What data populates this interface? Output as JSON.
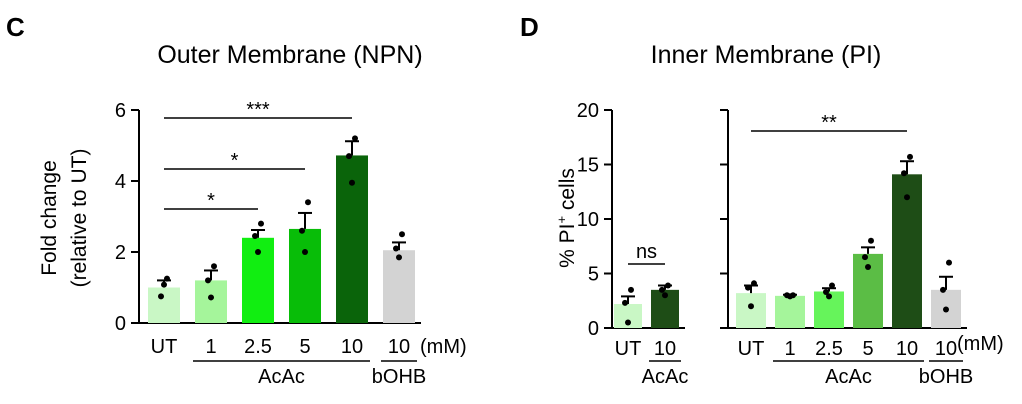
{
  "panels": {
    "C": {
      "letter": "C"
    },
    "D": {
      "letter": "D"
    }
  },
  "chart_data": [
    {
      "id": "C",
      "type": "bar",
      "title": "Outer Membrane (NPN)",
      "ylabel_line1": "Fold change",
      "ylabel_line2": "(relative to UT)",
      "ylim": [
        0,
        6
      ],
      "yticks": [
        0,
        2,
        4,
        6
      ],
      "unit_label": "(mM)",
      "categories": [
        "UT",
        "1",
        "2.5",
        "5",
        "10",
        "10"
      ],
      "values": [
        1.0,
        1.2,
        2.4,
        2.65,
        4.72,
        2.05
      ],
      "errors": [
        0.2,
        0.28,
        0.22,
        0.45,
        0.4,
        0.22
      ],
      "points": [
        [
          1.08,
          0.75,
          1.25
        ],
        [
          0.72,
          1.2,
          1.6
        ],
        [
          2.0,
          2.45,
          2.8
        ],
        [
          2.0,
          2.6,
          3.4
        ],
        [
          3.95,
          4.7,
          5.2
        ],
        [
          1.85,
          2.1,
          2.5
        ]
      ],
      "colors": [
        "#c9f7c5",
        "#a5f59b",
        "#11ee11",
        "#08bd08",
        "#0a640a",
        "#d3d3d3"
      ],
      "groups": [
        {
          "label": "AcAc",
          "from": 1,
          "to": 4
        },
        {
          "label": "bOHB",
          "from": 5,
          "to": 5
        }
      ],
      "significance": [
        {
          "from": 0,
          "to": 2,
          "label": "*"
        },
        {
          "from": 0,
          "to": 3,
          "label": "*"
        },
        {
          "from": 0,
          "to": 4,
          "label": "***"
        }
      ]
    },
    {
      "id": "D",
      "type": "bar",
      "title": "Inner Membrane (PI)",
      "ylabel_main": "% PI",
      "ylabel_sup": "+",
      "ylabel_rest": " cells",
      "ylim": [
        0,
        20
      ],
      "yticks": [
        0,
        5,
        10,
        15,
        20
      ],
      "unit_label": "(mM)",
      "subplots": [
        {
          "categories": [
            "UT",
            "10"
          ],
          "values": [
            2.2,
            3.5
          ],
          "errors": [
            0.7,
            0.4
          ],
          "points": [
            [
              0.5,
              2.3,
              3.5
            ],
            [
              3.0,
              3.5,
              3.9
            ]
          ],
          "colors": [
            "#c9f7c5",
            "#1e4d16"
          ],
          "groups": [
            {
              "label": "AcAc",
              "from": 1,
              "to": 1
            }
          ],
          "significance": [
            {
              "from": 0,
              "to": 1,
              "label": "ns"
            }
          ]
        },
        {
          "categories": [
            "UT",
            "1",
            "2.5",
            "5",
            "10",
            "10"
          ],
          "values": [
            3.2,
            2.95,
            3.35,
            6.8,
            14.1,
            3.5
          ],
          "errors": [
            0.7,
            0.1,
            0.3,
            0.6,
            1.2,
            1.2
          ],
          "points": [
            [
              2.0,
              3.7,
              4.1
            ],
            [
              2.9,
              3.0,
              3.0
            ],
            [
              2.9,
              3.3,
              3.9
            ],
            [
              5.6,
              6.5,
              8.0
            ],
            [
              12.0,
              14.2,
              15.7
            ],
            [
              1.7,
              3.5,
              6.0
            ]
          ],
          "colors": [
            "#c9f7c5",
            "#a5f59b",
            "#66f45b",
            "#5bbd45",
            "#1e4d16",
            "#d3d3d3"
          ],
          "groups": [
            {
              "label": "AcAc",
              "from": 1,
              "to": 4
            },
            {
              "label": "bOHB",
              "from": 5,
              "to": 5
            }
          ],
          "significance": [
            {
              "from": 0,
              "to": 4,
              "label": "**"
            }
          ]
        }
      ]
    }
  ]
}
